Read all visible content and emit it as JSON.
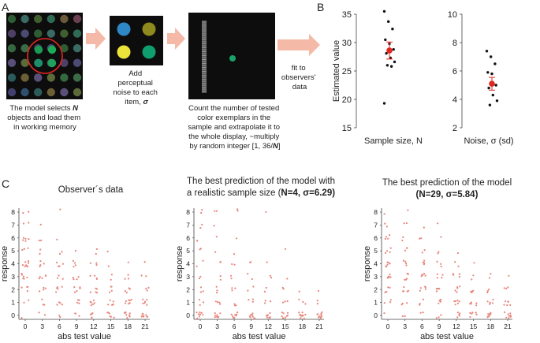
{
  "panels": {
    "a": "A",
    "b": "B",
    "c": "C"
  },
  "panel_a": {
    "step1_caption": [
      "The model selects ",
      "N",
      "objects and load them",
      "in working memory"
    ],
    "step2_caption": [
      "Add",
      "perceptual",
      "noise to each",
      "item, ",
      "σ"
    ],
    "step3_caption": [
      "Count the number of tested",
      "color exemplars in the",
      "sample and extrapolate it to",
      "the whole display, ~multiply",
      "by random integer [1, 36/",
      "N",
      "]"
    ],
    "fit_caption": [
      "fit to",
      "observers'",
      "data"
    ],
    "colors": {
      "arrow": "#f5b9a8",
      "circle": "#e3261f",
      "dark_bg": "#0d0d0d"
    }
  },
  "chart_data": [
    {
      "id": "b1",
      "type": "scatter",
      "title": "",
      "xlabel": "Sample size, N",
      "ylabel": "Estimated value",
      "ylim": [
        15,
        35
      ],
      "yticks": [
        15,
        20,
        25,
        30,
        35
      ],
      "points": [
        35.5,
        33.7,
        32.4,
        30.5,
        29.8,
        28.8,
        28.1,
        27.3,
        26.6,
        26.0,
        25.8,
        19.3
      ],
      "mean": 28.6,
      "error": 1.5,
      "mean_color": "#e3261f"
    },
    {
      "id": "b2",
      "type": "scatter",
      "title": "",
      "xlabel": "Noise, σ (sd)",
      "ylabel": "",
      "ylim": [
        2,
        10
      ],
      "yticks": [
        2,
        4,
        6,
        8,
        10
      ],
      "points": [
        7.4,
        7.0,
        6.5,
        5.9,
        5.8,
        5.0,
        4.8,
        4.3,
        3.9,
        3.6
      ],
      "mean": 5.1,
      "error": 0.45,
      "mean_color": "#e3261f"
    },
    {
      "id": "c1",
      "type": "scatter",
      "title": [
        "Observer´s data"
      ],
      "xlabel": "abs test value",
      "ylabel": "response",
      "xticks": [
        0,
        3,
        6,
        9,
        12,
        15,
        18,
        21
      ],
      "yticks": [
        0,
        1,
        2,
        3,
        4,
        5,
        6,
        7,
        8
      ],
      "point_color": "#e8857b",
      "counts": [
        [
          1,
          2,
          4,
          6,
          8,
          4,
          5,
          2,
          2
        ],
        [
          2,
          3,
          4,
          5,
          4,
          2,
          2,
          1,
          0
        ],
        [
          2,
          4,
          5,
          3,
          4,
          2,
          1,
          0,
          1
        ],
        [
          3,
          4,
          5,
          4,
          4,
          1,
          0,
          0,
          0
        ],
        [
          5,
          6,
          5,
          4,
          3,
          2,
          0,
          0,
          0
        ],
        [
          6,
          6,
          4,
          2,
          1,
          1,
          0,
          0,
          0
        ],
        [
          8,
          7,
          4,
          3,
          1,
          0,
          0,
          0,
          0
        ],
        [
          9,
          6,
          3,
          2,
          1,
          0,
          0,
          0,
          0
        ]
      ]
    },
    {
      "id": "c2",
      "type": "scatter",
      "title": [
        "The best prediction of the model with",
        "a realistic sample size (",
        "N",
        "=4, ",
        "σ",
        "=6.29",
        ")"
      ],
      "xlabel": "abs test value",
      "ylabel": "response",
      "xticks": [
        0,
        3,
        6,
        9,
        12,
        15,
        18,
        21
      ],
      "yticks": [
        0,
        1,
        2,
        3,
        4,
        5,
        6,
        7,
        8
      ],
      "point_color": "#e8857b",
      "counts": [
        [
          8,
          3,
          3,
          2,
          2,
          2,
          2,
          2,
          2
        ],
        [
          8,
          4,
          3,
          2,
          2,
          1,
          1,
          1,
          2
        ],
        [
          8,
          3,
          3,
          2,
          2,
          1,
          1,
          0,
          2
        ],
        [
          8,
          3,
          2,
          2,
          2,
          0,
          0,
          0,
          0
        ],
        [
          8,
          3,
          2,
          2,
          1,
          0,
          0,
          0,
          1
        ],
        [
          9,
          3,
          2,
          1,
          0,
          1,
          0,
          0,
          0
        ],
        [
          10,
          3,
          1,
          0,
          0,
          0,
          0,
          0,
          0
        ],
        [
          10,
          2,
          1,
          0,
          0,
          0,
          0,
          0,
          0
        ]
      ]
    },
    {
      "id": "c3",
      "type": "scatter",
      "title": [
        "The best prediction of the model",
        "(",
        "N",
        "=29, ",
        "σ",
        "=5.84",
        ")"
      ],
      "xlabel": "abs test value",
      "ylabel": "response",
      "xticks": [
        0,
        3,
        6,
        9,
        12,
        15,
        18,
        21
      ],
      "yticks": [
        0,
        1,
        2,
        3,
        4,
        5,
        6,
        7,
        8
      ],
      "point_color": "#e8857b",
      "counts": [
        [
          1,
          3,
          4,
          6,
          7,
          4,
          4,
          2,
          1
        ],
        [
          2,
          3,
          5,
          5,
          4,
          3,
          2,
          2,
          1
        ],
        [
          2,
          3,
          5,
          5,
          4,
          2,
          2,
          1,
          0
        ],
        [
          3,
          5,
          5,
          4,
          3,
          2,
          1,
          1,
          0
        ],
        [
          5,
          6,
          5,
          4,
          2,
          1,
          0,
          0,
          0
        ],
        [
          6,
          6,
          4,
          2,
          1,
          0,
          0,
          0,
          0
        ],
        [
          8,
          6,
          3,
          2,
          0,
          0,
          0,
          0,
          0
        ],
        [
          9,
          6,
          3,
          1,
          0,
          0,
          0,
          0,
          0
        ]
      ]
    }
  ]
}
